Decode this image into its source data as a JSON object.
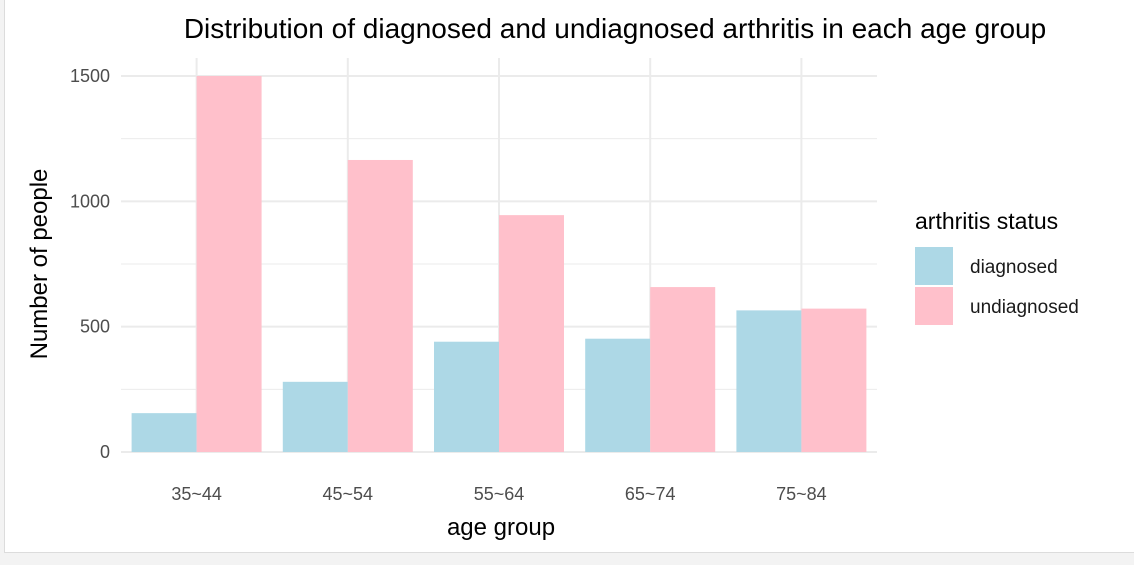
{
  "chart_data": {
    "type": "bar",
    "title": "Distribution of diagnosed and undiagnosed arthritis in each age group",
    "xlabel": "age group",
    "ylabel": "Number of people",
    "categories": [
      "35~44",
      "45~54",
      "55~64",
      "65~74",
      "75~84"
    ],
    "series": [
      {
        "name": "diagnosed",
        "color": "#add8e6",
        "values": [
          155,
          280,
          440,
          452,
          565
        ]
      },
      {
        "name": "undiagnosed",
        "color": "#ffc0cb",
        "values": [
          1500,
          1165,
          945,
          658,
          572
        ]
      }
    ],
    "y_ticks": [
      "0",
      "500",
      "1000",
      "1500"
    ],
    "ylim": [
      0,
      1560
    ],
    "grid": true,
    "legend": {
      "title": "arthritis status",
      "position": "right"
    }
  }
}
